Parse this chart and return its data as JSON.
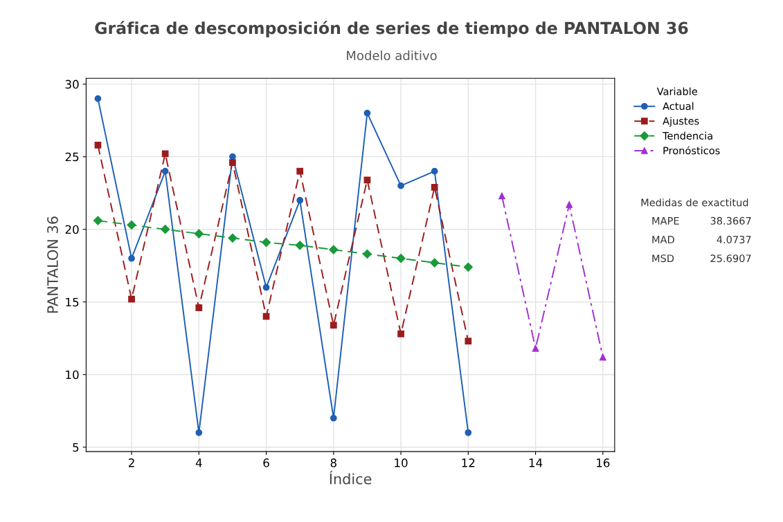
{
  "chart_data": {
    "type": "line",
    "title": "Gráfica de descomposición de series de tiempo de PANTALON 36",
    "subtitle": "Modelo aditivo",
    "xlabel": "Índice",
    "ylabel": "PANTALON 36",
    "legend_title": "Variable",
    "series": [
      {
        "name": "Actual",
        "color": "#1f5fb4",
        "marker": "circle",
        "line_style": "solid",
        "x": [
          1,
          2,
          3,
          4,
          5,
          6,
          7,
          8,
          9,
          10,
          11,
          12
        ],
        "values": [
          29,
          18,
          24,
          6,
          25,
          16,
          22,
          7,
          28,
          23,
          24,
          6
        ]
      },
      {
        "name": "Ajustes",
        "color": "#9b1c1c",
        "marker": "square",
        "line_style": "dashed",
        "x": [
          1,
          2,
          3,
          4,
          5,
          6,
          7,
          8,
          9,
          10,
          11,
          12
        ],
        "values": [
          25.8,
          15.2,
          25.2,
          14.6,
          24.6,
          14.0,
          24.0,
          13.4,
          23.4,
          12.8,
          22.9,
          12.3
        ]
      },
      {
        "name": "Tendencia",
        "color": "#1a9a3a",
        "marker": "diamond",
        "line_style": "dashed",
        "x": [
          1,
          2,
          3,
          4,
          5,
          6,
          7,
          8,
          9,
          10,
          11,
          12
        ],
        "values": [
          20.6,
          20.3,
          20.0,
          19.7,
          19.4,
          19.1,
          18.9,
          18.6,
          18.3,
          18.0,
          17.7,
          17.4
        ]
      },
      {
        "name": "Pronósticos",
        "color": "#a030d0",
        "marker": "triangle",
        "line_style": "dashdot",
        "x": [
          13,
          14,
          15,
          16
        ],
        "values": [
          22.3,
          11.8,
          21.7,
          11.2
        ]
      }
    ],
    "xlim": [
      0.65,
      16.35
    ],
    "xticks": [
      2,
      4,
      6,
      8,
      10,
      12,
      14,
      16
    ],
    "ylim": [
      4.7,
      30.4
    ],
    "yticks": [
      5,
      10,
      15,
      20,
      25,
      30
    ],
    "grid": true,
    "legend": "right",
    "annotations": [
      "Medidas de exactitud",
      "MAPE",
      "38.3667",
      "MAD",
      "4.0737",
      "MSD",
      "25.6907"
    ]
  }
}
